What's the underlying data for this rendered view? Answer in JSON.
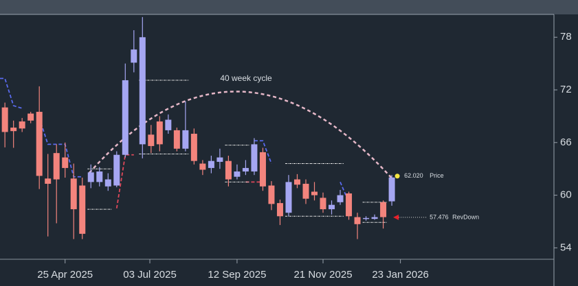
{
  "chart_data": {
    "type": "candlestick",
    "x": [
      "2025-03-07",
      "2025-03-14",
      "2025-03-21",
      "2025-03-28",
      "2025-04-04",
      "2025-04-11",
      "2025-04-18",
      "2025-04-25",
      "2025-05-02",
      "2025-05-09",
      "2025-05-16",
      "2025-05-23",
      "2025-05-30",
      "2025-06-06",
      "2025-06-13",
      "2025-06-20",
      "2025-06-27",
      "2025-07-04",
      "2025-07-11",
      "2025-07-18",
      "2025-07-25",
      "2025-08-01",
      "2025-08-08",
      "2025-08-15",
      "2025-08-22",
      "2025-08-29",
      "2025-09-05",
      "2025-09-12",
      "2025-09-19",
      "2025-09-26",
      "2025-10-03",
      "2025-10-10",
      "2025-10-17",
      "2025-10-24",
      "2025-10-31",
      "2025-11-07",
      "2025-11-14",
      "2025-11-21",
      "2025-11-28",
      "2025-12-05",
      "2025-12-12",
      "2025-12-19",
      "2025-12-26",
      "2026-01-02",
      "2026-01-09",
      "2026-01-16"
    ],
    "open": [
      70.0,
      67.7,
      68.4,
      69.3,
      69.5,
      61.9,
      64.8,
      64.3,
      61.9,
      61.1,
      61.5,
      61.5,
      61.0,
      61.1,
      64.6,
      75.1,
      65.8,
      66.9,
      68.4,
      67.4,
      67.4,
      65.3,
      67.0,
      63.6,
      63.1,
      63.8,
      63.9,
      62.1,
      62.7,
      62.7,
      64.9,
      61.1,
      59.1,
      58.0,
      61.8,
      61.3,
      60.4,
      59.7,
      58.4,
      59.2,
      60.2,
      57.5,
      57.3,
      57.3,
      59.2,
      59.3
    ],
    "high": [
      70.55,
      68.5,
      68.8,
      69.5,
      72.4,
      64.7,
      65.8,
      66.0,
      63.6,
      62.0,
      63.5,
      63.2,
      62.5,
      65.0,
      75.0,
      78.8,
      80.3,
      68.0,
      69.0,
      69.2,
      67.7,
      70.7,
      67.6,
      64.0,
      64.5,
      65.3,
      64.5,
      63.5,
      64.0,
      66.5,
      65.4,
      61.6,
      59.5,
      62.3,
      62.4,
      61.8,
      61.5,
      60.3,
      59.4,
      60.6,
      60.4,
      58.0,
      57.6,
      57.8,
      59.4,
      62.3
    ],
    "low": [
      65.45,
      65.4,
      67.2,
      68.2,
      60.7,
      55.3,
      56.8,
      62.0,
      55.0,
      55.0,
      60.8,
      61.0,
      60.5,
      60.9,
      64.3,
      74.0,
      64.2,
      64.8,
      65.0,
      67.0,
      65.0,
      65.0,
      63.5,
      62.3,
      62.5,
      63.0,
      61.0,
      61.8,
      62.3,
      62.3,
      60.5,
      58.3,
      56.6,
      57.6,
      60.8,
      59.0,
      59.4,
      58.0,
      57.8,
      58.9,
      57.2,
      55.0,
      57.1,
      57.2,
      56.2,
      58.8
    ],
    "close": [
      67.2,
      67.3,
      67.6,
      68.5,
      62.2,
      61.3,
      61.8,
      63.1,
      58.4,
      55.6,
      62.6,
      62.7,
      61.8,
      64.6,
      73.1,
      76.6,
      78.0,
      65.6,
      65.8,
      68.6,
      65.3,
      67.4,
      63.9,
      62.9,
      63.9,
      64.3,
      61.8,
      62.7,
      63.1,
      65.8,
      61.0,
      59.0,
      57.6,
      61.5,
      61.2,
      59.6,
      60.0,
      58.4,
      58.9,
      60.0,
      57.6,
      56.7,
      57.4,
      57.5,
      57.5,
      62.02
    ],
    "up_color": "#a5a6f2",
    "down_color": "#f3847d",
    "xlim": [
      "2025-03-03",
      "2026-05-28"
    ],
    "xticks": [
      {
        "value": "2025-04-25",
        "label": "25 Apr 2025"
      },
      {
        "value": "2025-07-03",
        "label": "03 Jul 2025"
      },
      {
        "value": "2025-09-12",
        "label": "12 Sep 2025"
      },
      {
        "value": "2025-11-21",
        "label": "21 Nov 2025"
      },
      {
        "value": "2026-01-23",
        "label": "23 Jan 2026"
      }
    ],
    "ylim": [
      52.7,
      80.6
    ],
    "yticks": [
      54,
      60,
      66,
      72,
      78
    ],
    "upper_band": {
      "color": "#5a6bf0",
      "segments": [
        [
          [
            "2025-03-03",
            73.3
          ],
          [
            "2025-03-07",
            73.3
          ],
          [
            "2025-03-14",
            70.2
          ],
          [
            "2025-03-21",
            69.9
          ]
        ],
        [
          [
            "2025-04-04",
            68.8
          ],
          [
            "2025-04-11",
            65.8
          ],
          [
            "2025-04-25",
            65.8
          ],
          [
            "2025-05-02",
            62.1
          ],
          [
            "2025-05-09",
            62.1
          ]
        ],
        [
          [
            "2025-09-26",
            66.2
          ],
          [
            "2025-10-03",
            66.2
          ],
          [
            "2025-10-10",
            63.6
          ]
        ],
        [
          [
            "2025-12-05",
            61.5
          ],
          [
            "2025-12-12",
            59.2
          ]
        ]
      ]
    },
    "lower_band": {
      "color": "#e0485a",
      "segments": [
        [
          [
            "2025-06-06",
            58.5
          ],
          [
            "2025-06-13",
            64.6
          ],
          [
            "2025-06-20",
            64.6
          ]
        ],
        [
          [
            "2025-09-19",
            61.5
          ],
          [
            "2025-10-03",
            61.5
          ]
        ]
      ]
    },
    "levels": [
      {
        "start": "2025-06-27",
        "end": "2025-08-01",
        "value": 73.1
      },
      {
        "start": "2025-06-27",
        "end": "2025-08-01",
        "value": 64.7
      },
      {
        "start": "2025-05-16",
        "end": "2025-05-30",
        "value": 58.4
      },
      {
        "start": "2025-05-16",
        "end": "2025-05-30",
        "value": 63.0
      },
      {
        "start": "2025-09-05",
        "end": "2025-09-19",
        "value": 65.7
      },
      {
        "start": "2025-09-05",
        "end": "2025-09-19",
        "value": 61.5
      },
      {
        "start": "2025-10-24",
        "end": "2025-12-05",
        "value": 63.6
      },
      {
        "start": "2025-10-24",
        "end": "2025-12-05",
        "value": 57.6
      },
      {
        "start": "2025-12-26",
        "end": "2026-01-09",
        "value": 59.2
      },
      {
        "start": "2025-12-26",
        "end": "2026-01-09",
        "value": 56.9
      }
    ],
    "cycle_label": "40 week cycle",
    "annotations": [
      {
        "value": 62.02,
        "label": "62.020",
        "text": "Price",
        "date": "2026-01-16",
        "color": "#f5e642"
      },
      {
        "value": 57.476,
        "label": "57.476",
        "text": "RevDown",
        "date": "2026-01-16",
        "color": "#e8202a"
      }
    ]
  }
}
